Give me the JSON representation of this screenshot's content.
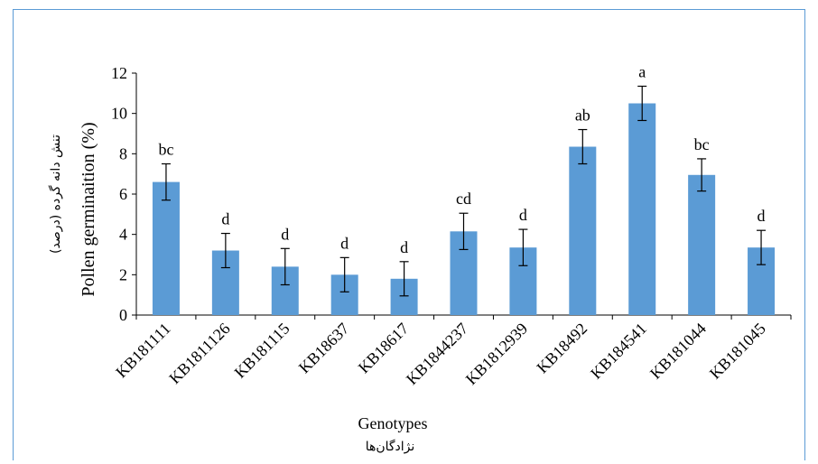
{
  "chart_data": {
    "type": "bar",
    "title": "",
    "xlabel": "Genotypes",
    "xlabel_fa": "نژادگان‌ها",
    "ylabel": "Pollen germinaition (%)",
    "ylabel_fa": "تنش دانه گرده (درصد)",
    "ylim": [
      0,
      12
    ],
    "yticks": [
      0,
      2,
      4,
      6,
      8,
      10,
      12
    ],
    "grid": false,
    "legend": "none",
    "bar_color": "#5b9bd5",
    "categories": [
      "KB181111",
      "KB1811126",
      "KB181115",
      "KB18637",
      "KB18617",
      "KB1844237",
      "KB1812939",
      "KB18492",
      "KB184541",
      "KB181044",
      "KB181045"
    ],
    "values": [
      6.6,
      3.2,
      2.4,
      2.0,
      1.8,
      4.15,
      3.35,
      8.35,
      10.5,
      6.95,
      3.35
    ],
    "errors": [
      0.9,
      0.85,
      0.9,
      0.85,
      0.85,
      0.9,
      0.9,
      0.85,
      0.85,
      0.8,
      0.85
    ],
    "letters": [
      "bc",
      "d",
      "d",
      "d",
      "d",
      "cd",
      "d",
      "ab",
      "a",
      "bc",
      "d"
    ]
  }
}
